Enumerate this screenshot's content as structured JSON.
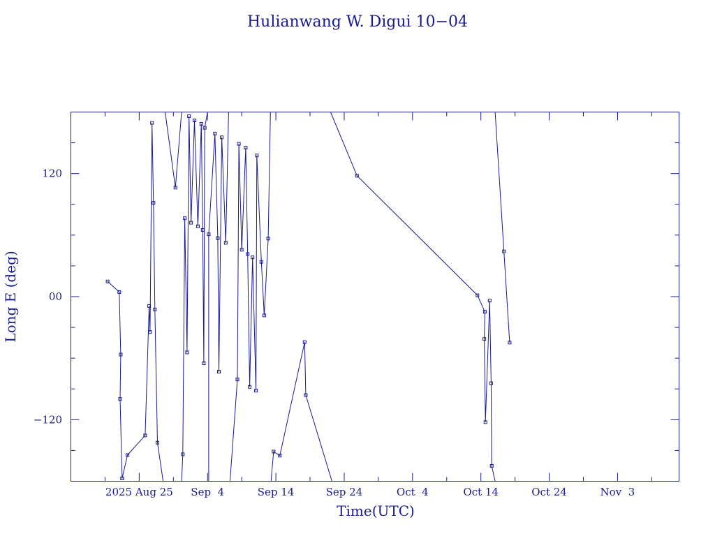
{
  "chart_data": {
    "type": "line",
    "title": "Hulianwang W. Digui 10−04",
    "xlabel": "Time(UTC)",
    "ylabel": "Long E (deg)",
    "x_unit": "days",
    "xlim": [
      "2025-08-15T00:00",
      "2025-11-12T00:00"
    ],
    "ylim": [
      -180,
      180
    ],
    "x_ticks": [
      {
        "x": "2025-08-25T00:00",
        "label": "2025 Aug 25"
      },
      {
        "x": "2025-09-04T00:00",
        "label": "Sep  4"
      },
      {
        "x": "2025-09-14T00:00",
        "label": "Sep 14"
      },
      {
        "x": "2025-09-24T00:00",
        "label": "Sep 24"
      },
      {
        "x": "2025-10-04T00:00",
        "label": "Oct  4"
      },
      {
        "x": "2025-10-14T00:00",
        "label": "Oct 14"
      },
      {
        "x": "2025-10-24T00:00",
        "label": "Oct 24"
      },
      {
        "x": "2025-11-03T00:00",
        "label": "Nov  3"
      }
    ],
    "y_ticks": [
      {
        "y": 120,
        "label": "120"
      },
      {
        "y": 0,
        "label": "00"
      },
      {
        "y": -120,
        "label": "−120"
      }
    ],
    "y_minor_step": 30,
    "x_minor_step_days": 5,
    "grid": false,
    "legend": "none",
    "segments": [
      [
        [
          "2025-08-20T09:00",
          14.8
        ],
        [
          "2025-08-22T02:00",
          4.5
        ],
        [
          "2025-08-22T07:00",
          -56.5
        ],
        [
          "2025-08-22T05:00",
          -99.8
        ],
        [
          "2025-08-22T12:00",
          -177.3
        ]
      ],
      [
        [
          "2025-08-22T12:00",
          -177.3
        ],
        [
          "2025-08-23T07:00",
          -154.4
        ],
        [
          "2025-08-25T21:00",
          -135.3
        ],
        [
          "2025-08-26T11:00",
          -9.1
        ],
        [
          "2025-08-26T14:00",
          -34.5
        ],
        [
          "2025-08-26T21:00",
          169.4
        ],
        [
          "2025-08-27T02:00",
          91.4
        ],
        [
          "2025-08-27T07:00",
          -12.5
        ],
        [
          "2025-08-27T16:00",
          -142.4
        ],
        [
          "2025-08-28T12:00",
          -180
        ]
      ],
      [
        [
          "2025-08-28T19:00",
          180
        ],
        [
          "2025-08-30T07:00",
          106.3
        ],
        [
          "2025-08-31T05:00",
          180
        ]
      ],
      [
        [
          "2025-08-31T05:00",
          -180
        ],
        [
          "2025-08-31T09:00",
          -153.7
        ],
        [
          "2025-08-31T16:00",
          76.4
        ],
        [
          "2025-09-01T00:00",
          -54.4
        ],
        [
          "2025-09-01T07:00",
          175.9
        ],
        [
          "2025-09-01T14:00",
          72.1
        ],
        [
          "2025-09-02T02:00",
          171.8
        ],
        [
          "2025-09-02T14:00",
          68.5
        ],
        [
          "2025-09-03T02:00",
          168.5
        ],
        [
          "2025-09-03T07:00",
          65.0
        ],
        [
          "2025-09-03T11:00",
          -65.0
        ],
        [
          "2025-09-03T14:00",
          164.6
        ],
        [
          "2025-09-04T00:00",
          180
        ]
      ],
      [
        [
          "2025-09-04T04:00",
          -180
        ],
        [
          "2025-09-04T04:00",
          60.8
        ],
        [
          "2025-09-05T02:00",
          159.0
        ],
        [
          "2025-09-05T12:00",
          57.0
        ],
        [
          "2025-09-05T16:00",
          -73.2
        ],
        [
          "2025-09-06T02:00",
          155.3
        ],
        [
          "2025-09-06T16:00",
          52.5
        ],
        [
          "2025-09-07T02:00",
          180
        ]
      ],
      [
        [
          "2025-09-07T07:00",
          -180
        ],
        [
          "2025-09-08T09:00",
          -80.8
        ],
        [
          "2025-09-08T14:00",
          149.0
        ],
        [
          "2025-09-09T00:00",
          45.7
        ],
        [
          "2025-09-09T14:00",
          145.3
        ],
        [
          "2025-09-09T21:00",
          41.5
        ],
        [
          "2025-09-10T04:00",
          -88.0
        ],
        [
          "2025-09-10T14:00",
          38.3
        ],
        [
          "2025-09-11T02:00",
          -91.7
        ],
        [
          "2025-09-11T05:00",
          137.6
        ],
        [
          "2025-09-11T21:00",
          33.9
        ],
        [
          "2025-09-12T07:00",
          -18.3
        ],
        [
          "2025-09-12T21:00",
          56.6
        ],
        [
          "2025-09-13T05:00",
          180
        ]
      ],
      [
        [
          "2025-09-13T07:00",
          -180
        ],
        [
          "2025-09-13T16:00",
          -151.1
        ],
        [
          "2025-09-14T14:00",
          -155.0
        ],
        [
          "2025-09-18T05:00",
          -44.3
        ],
        [
          "2025-09-18T09:00",
          -96.0
        ],
        [
          "2025-09-22T05:00",
          -180
        ]
      ],
      [
        [
          "2025-09-22T00:00",
          180
        ],
        [
          "2025-09-25T21:00",
          117.9
        ],
        [
          "2025-10-13T12:00",
          1.3
        ],
        [
          "2025-10-14T14:00",
          -14.8
        ],
        [
          "2025-10-14T12:00",
          -41.3
        ],
        [
          "2025-10-14T16:00",
          -122.4
        ],
        [
          "2025-10-15T07:00",
          -3.9
        ],
        [
          "2025-10-15T12:00",
          -84.5
        ],
        [
          "2025-10-15T14:00",
          -165.0
        ],
        [
          "2025-10-16T02:00",
          -180
        ]
      ],
      [
        [
          "2025-10-16T02:00",
          180
        ],
        [
          "2025-10-17T09:00",
          44.1
        ],
        [
          "2025-10-18T05:00",
          -44.8
        ]
      ]
    ]
  }
}
